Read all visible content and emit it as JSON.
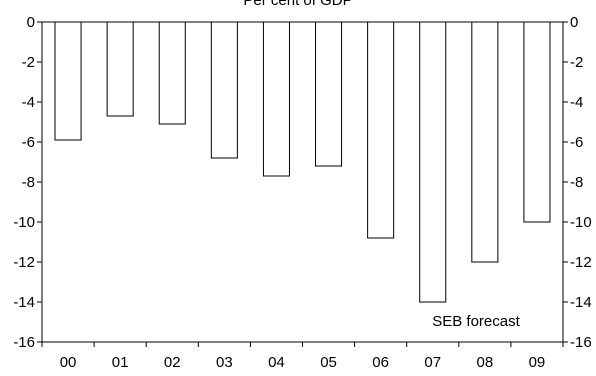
{
  "chart_data": {
    "type": "bar",
    "title": "Per cent of GDP",
    "categories": [
      "00",
      "01",
      "02",
      "03",
      "04",
      "05",
      "06",
      "07",
      "08",
      "09"
    ],
    "values": [
      -5.9,
      -4.7,
      -5.1,
      -6.8,
      -7.7,
      -7.2,
      -10.8,
      -14.0,
      -12.0,
      -10.0
    ],
    "ylim": [
      -16,
      0
    ],
    "yticks": [
      0,
      -2,
      -4,
      -6,
      -8,
      -10,
      -12,
      -14,
      -16
    ],
    "ytick_labels": [
      "0",
      "-2",
      "-4",
      "-6",
      "-8",
      "-10",
      "-12",
      "-14",
      "-16"
    ],
    "secondary_y_axis": true,
    "annotation": "SEB forecast",
    "bar_fill": "#ffffff",
    "bar_stroke": "#000000",
    "grid": false,
    "legend": false
  }
}
